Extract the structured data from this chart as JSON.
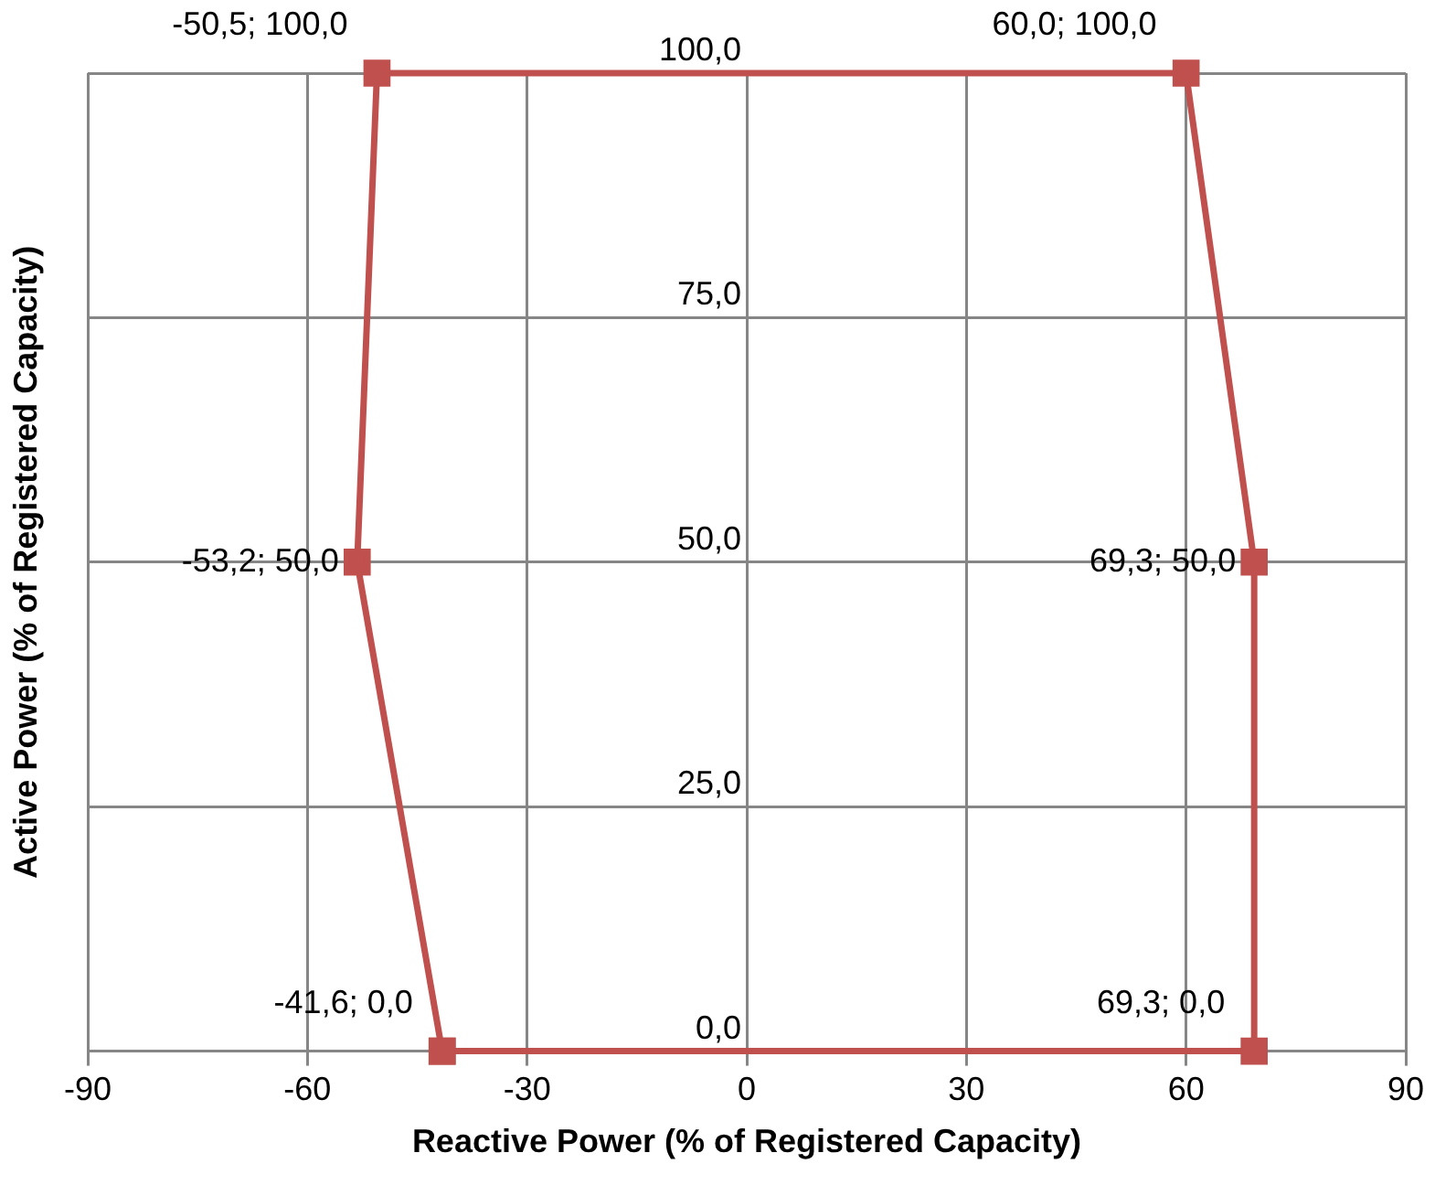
{
  "chart_data": {
    "type": "scatter",
    "xlabel": "Reactive Power (% of Registered Capacity)",
    "ylabel": "Active Power (% of Registered Capacity)",
    "series": [
      {
        "color": "#c0504d",
        "x": [
          -41.6,
          -53.2,
          -50.5,
          60.0,
          69.3,
          69.3,
          -41.6
        ],
        "values": [
          0,
          50,
          100,
          100,
          50,
          0,
          0
        ],
        "value_labels": [
          "-41,6; 0,0",
          "-53,2; 50,0",
          "-50,5; 100,0",
          "60,0; 100,0",
          "69,3; 50,0",
          "69,3; 0,0",
          null
        ]
      }
    ],
    "xlim": [
      -90,
      90
    ],
    "xticks": [
      -90,
      -60,
      -30,
      0,
      30,
      60,
      90
    ],
    "ylim": [
      0,
      100
    ],
    "yticks": [
      {
        "value": 0,
        "label": "0,0"
      },
      {
        "value": 25,
        "label": "25,0"
      },
      {
        "value": 50,
        "label": "50,0"
      },
      {
        "value": 75,
        "label": "75,0"
      },
      {
        "value": 100,
        "label": "100,0"
      }
    ],
    "grid": true,
    "legend": false,
    "marker": "square",
    "line_style": "solid"
  }
}
